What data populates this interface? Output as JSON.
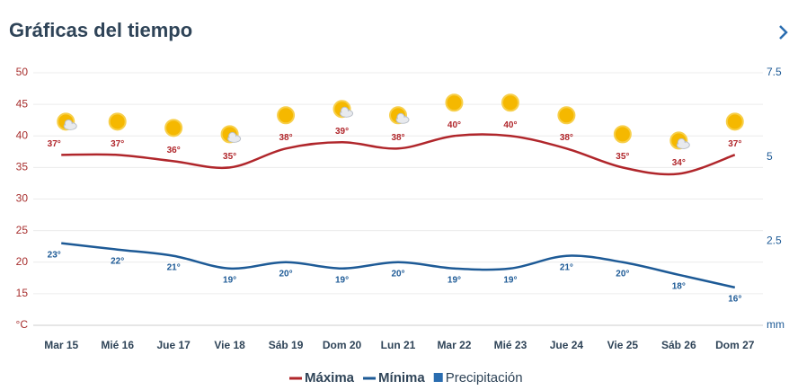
{
  "chart_data": {
    "type": "line",
    "title": "Gráficas del tiempo",
    "categories": [
      "Mar 15",
      "Mié 16",
      "Jue 17",
      "Vie 18",
      "Sáb 19",
      "Dom 20",
      "Lun 21",
      "Mar 22",
      "Mié 23",
      "Jue 24",
      "Vie 25",
      "Sáb 26",
      "Dom 27"
    ],
    "series": [
      {
        "name": "Máxima",
        "color": "#b0262b",
        "values": [
          37,
          37,
          36,
          35,
          38,
          39,
          38,
          40,
          40,
          38,
          35,
          34,
          37
        ],
        "value_labels": [
          "37°",
          "37°",
          "36°",
          "35°",
          "38°",
          "39°",
          "38°",
          "40°",
          "40°",
          "38°",
          "35°",
          "34°",
          "37°"
        ]
      },
      {
        "name": "Mínima",
        "color": "#1d5a96",
        "values": [
          23,
          22,
          21,
          19,
          20,
          19,
          20,
          19,
          19,
          21,
          20,
          18,
          16
        ],
        "value_labels": [
          "23°",
          "22°",
          "21°",
          "19°",
          "20°",
          "19°",
          "20°",
          "19°",
          "19°",
          "21°",
          "20°",
          "18°",
          "16°"
        ]
      },
      {
        "name": "Precipitación",
        "color": "#2a6db0",
        "axis": "y2",
        "values": [
          null,
          null,
          null,
          null,
          null,
          null,
          null,
          null,
          null,
          null,
          null,
          null,
          null
        ]
      }
    ],
    "ylim": [
      10,
      50
    ],
    "yticks": [
      {
        "value": 10,
        "label": "°C"
      },
      15,
      20,
      25,
      30,
      35,
      40,
      45,
      50
    ],
    "y2lim": [
      0,
      7.5
    ],
    "y2ticks": [
      {
        "value": 0,
        "label": "mm"
      },
      2.5,
      5,
      7.5
    ],
    "grid": true
  }
}
